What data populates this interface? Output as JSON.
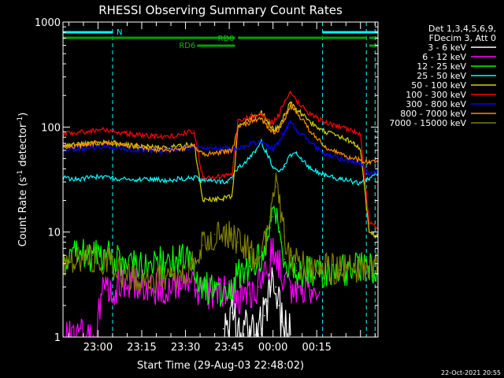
{
  "chart_data": {
    "type": "line",
    "title": "RHESSI Observing Summary Count Rates",
    "xlabel": "Start Time (29-Aug-03 22:48:02)",
    "ylabel_main": "Count Rate (s",
    "ylabel_sup1": "-1",
    "ylabel_mid": " detector",
    "ylabel_sup2": "-1",
    "ylabel_end": ")",
    "yscale": "log",
    "ylim": [
      1,
      1000
    ],
    "xlim_minutes": [
      0,
      108
    ],
    "ytick_labels": [
      {
        "value": 1,
        "label": "1"
      },
      {
        "value": 10,
        "label": "10"
      },
      {
        "value": 100,
        "label": "100"
      },
      {
        "value": 1000,
        "label": "1000"
      }
    ],
    "xtick_labels": [
      {
        "minute": 12,
        "label": "23:00"
      },
      {
        "minute": 27,
        "label": "23:15"
      },
      {
        "minute": 42,
        "label": "23:30"
      },
      {
        "minute": 57,
        "label": "23:45"
      },
      {
        "minute": 72,
        "label": "00:00"
      },
      {
        "minute": 87,
        "label": "00:15"
      }
    ],
    "legend_header": [
      "Det 1,3,4,5,6,9,",
      "FDecim 3, Att 0"
    ],
    "legend_position": "right",
    "footer_date": "22-Oct-2021 20:55",
    "annotations": {
      "N_label": "N",
      "RD0_label": "RD0",
      "RD6_label": "RD6",
      "N_intervals": [
        [
          0,
          17
        ],
        [
          89,
          108
        ]
      ],
      "RD0_intervals": [
        [
          0,
          59
        ],
        [
          60,
          104
        ],
        [
          105,
          108
        ]
      ],
      "RD6_intervals": [
        [
          46,
          59
        ],
        [
          105,
          108
        ]
      ],
      "cyan_vlines": [
        17,
        89,
        104,
        107
      ]
    },
    "series": [
      {
        "name": "3 - 6 keV",
        "color": "#ffffff",
        "x": [
          55,
          58,
          60,
          64,
          66,
          68,
          69,
          70,
          71,
          72,
          73,
          74,
          75,
          76,
          78
        ],
        "y": [
          1.2,
          1.7,
          1.3,
          1.1,
          1.05,
          1.2,
          1.6,
          2.2,
          3,
          3.8,
          3,
          2,
          1.4,
          1.1,
          1.05
        ]
      },
      {
        "name": "6 - 12 keV",
        "color": "#ff00ff",
        "x": [
          0,
          11,
          13,
          15,
          20,
          25,
          30,
          35,
          40,
          45,
          50,
          55,
          60,
          64,
          67,
          69,
          71,
          72,
          73,
          74,
          76,
          78,
          80,
          85,
          88
        ],
        "y": [
          1,
          1,
          2.5,
          2.8,
          3.2,
          3.1,
          3,
          2.9,
          2.9,
          2.8,
          2.7,
          2.6,
          2.5,
          2.6,
          3,
          4,
          5.5,
          6.8,
          6,
          4.8,
          3.5,
          3,
          2.9,
          2.8,
          2.7
        ]
      },
      {
        "name": "12 - 25 keV",
        "color": "#00ff00",
        "x": [
          0,
          5,
          10,
          15,
          20,
          25,
          30,
          35,
          40,
          44,
          48,
          52,
          55,
          58,
          60,
          62,
          64,
          66,
          68,
          70,
          71,
          72,
          73,
          74,
          75,
          76,
          78,
          80,
          85,
          90,
          95,
          100,
          105,
          108
        ],
        "y": [
          6,
          6,
          6,
          5.8,
          5.5,
          5.3,
          5.2,
          5.1,
          5.4,
          5.5,
          3,
          2.8,
          2.7,
          3,
          4,
          4.5,
          4.7,
          5,
          6,
          9,
          11,
          14,
          13,
          11,
          8,
          5.5,
          4.5,
          4.3,
          4.2,
          4.2,
          4.3,
          4.4,
          4.5,
          4.6
        ]
      },
      {
        "name": "25 - 50 keV",
        "color": "#00ffff",
        "x": [
          0,
          5,
          10,
          15,
          20,
          25,
          30,
          35,
          40,
          45,
          48,
          55,
          58,
          60,
          62,
          64,
          66,
          68,
          70,
          72,
          74,
          76,
          78,
          80,
          85,
          90,
          95,
          100,
          102,
          105,
          108
        ],
        "y": [
          33,
          32,
          33,
          34,
          32,
          31,
          32,
          31,
          32,
          33,
          31,
          30,
          32,
          42,
          45,
          50,
          60,
          72,
          55,
          42,
          38,
          42,
          55,
          56,
          40,
          35,
          32,
          30,
          29,
          32,
          36
        ]
      },
      {
        "name": "50 - 100 keV",
        "color": "#d2d200",
        "x": [
          0,
          5,
          10,
          15,
          20,
          25,
          30,
          35,
          40,
          45,
          48,
          55,
          58,
          60,
          62,
          64,
          66,
          68,
          70,
          72,
          74,
          76,
          78,
          80,
          85,
          90,
          95,
          100,
          102,
          105,
          108
        ],
        "y": [
          65,
          68,
          70,
          72,
          68,
          66,
          65,
          64,
          66,
          68,
          20,
          21,
          22,
          100,
          110,
          120,
          130,
          140,
          115,
          95,
          100,
          130,
          170,
          150,
          110,
          90,
          80,
          70,
          60,
          10,
          9
        ]
      },
      {
        "name": "100 - 300 keV",
        "color": "#ff0000",
        "x": [
          0,
          5,
          10,
          15,
          20,
          25,
          30,
          35,
          40,
          45,
          48,
          55,
          58,
          60,
          62,
          64,
          66,
          68,
          70,
          72,
          74,
          76,
          78,
          80,
          85,
          90,
          95,
          100,
          102,
          105,
          108
        ],
        "y": [
          85,
          88,
          92,
          95,
          88,
          84,
          82,
          80,
          85,
          92,
          32,
          34,
          36,
          115,
          120,
          125,
          130,
          135,
          120,
          110,
          130,
          180,
          210,
          175,
          130,
          110,
          100,
          90,
          85,
          12,
          11
        ]
      },
      {
        "name": "300 - 800 keV",
        "color": "#0000ff",
        "x": [
          0,
          5,
          10,
          15,
          20,
          25,
          30,
          35,
          40,
          45,
          48,
          55,
          58,
          60,
          62,
          64,
          66,
          68,
          70,
          72,
          74,
          76,
          78,
          80,
          85,
          90,
          95,
          100,
          102,
          105,
          108
        ],
        "y": [
          60,
          62,
          64,
          66,
          62,
          60,
          60,
          59,
          62,
          64,
          62,
          63,
          62,
          62,
          64,
          68,
          70,
          72,
          66,
          62,
          70,
          92,
          110,
          95,
          70,
          55,
          50,
          47,
          46,
          36,
          37
        ]
      },
      {
        "name": "800 - 7000 keV",
        "color": "#ff8c00",
        "x": [
          0,
          5,
          10,
          15,
          20,
          25,
          30,
          35,
          40,
          45,
          48,
          55,
          58,
          60,
          62,
          64,
          66,
          68,
          70,
          72,
          74,
          76,
          78,
          80,
          85,
          90,
          95,
          100,
          102,
          105,
          108
        ],
        "y": [
          64,
          66,
          70,
          72,
          68,
          65,
          62,
          60,
          62,
          65,
          55,
          58,
          60,
          100,
          105,
          112,
          118,
          120,
          100,
          90,
          95,
          120,
          160,
          140,
          90,
          65,
          55,
          50,
          48,
          46,
          47
        ]
      },
      {
        "name": "7000 - 15000 keV",
        "color": "#808000",
        "x": [
          0,
          5,
          10,
          15,
          18,
          22,
          26,
          30,
          35,
          40,
          44,
          48,
          52,
          56,
          58,
          60,
          62,
          64,
          66,
          68,
          70,
          71,
          72,
          73,
          74,
          75,
          76,
          78,
          80,
          85,
          90,
          95,
          100,
          105,
          108
        ],
        "y": [
          5,
          5.2,
          5.5,
          5.5,
          4.5,
          3.8,
          3.6,
          3.6,
          3.6,
          3.8,
          5,
          7.5,
          9.5,
          10,
          9.5,
          8,
          7,
          6.5,
          5.5,
          6.5,
          9,
          14,
          22,
          27,
          22,
          14,
          9,
          6,
          5,
          4.6,
          4.5,
          4.4,
          4.5,
          4.6,
          4.8
        ]
      }
    ]
  }
}
